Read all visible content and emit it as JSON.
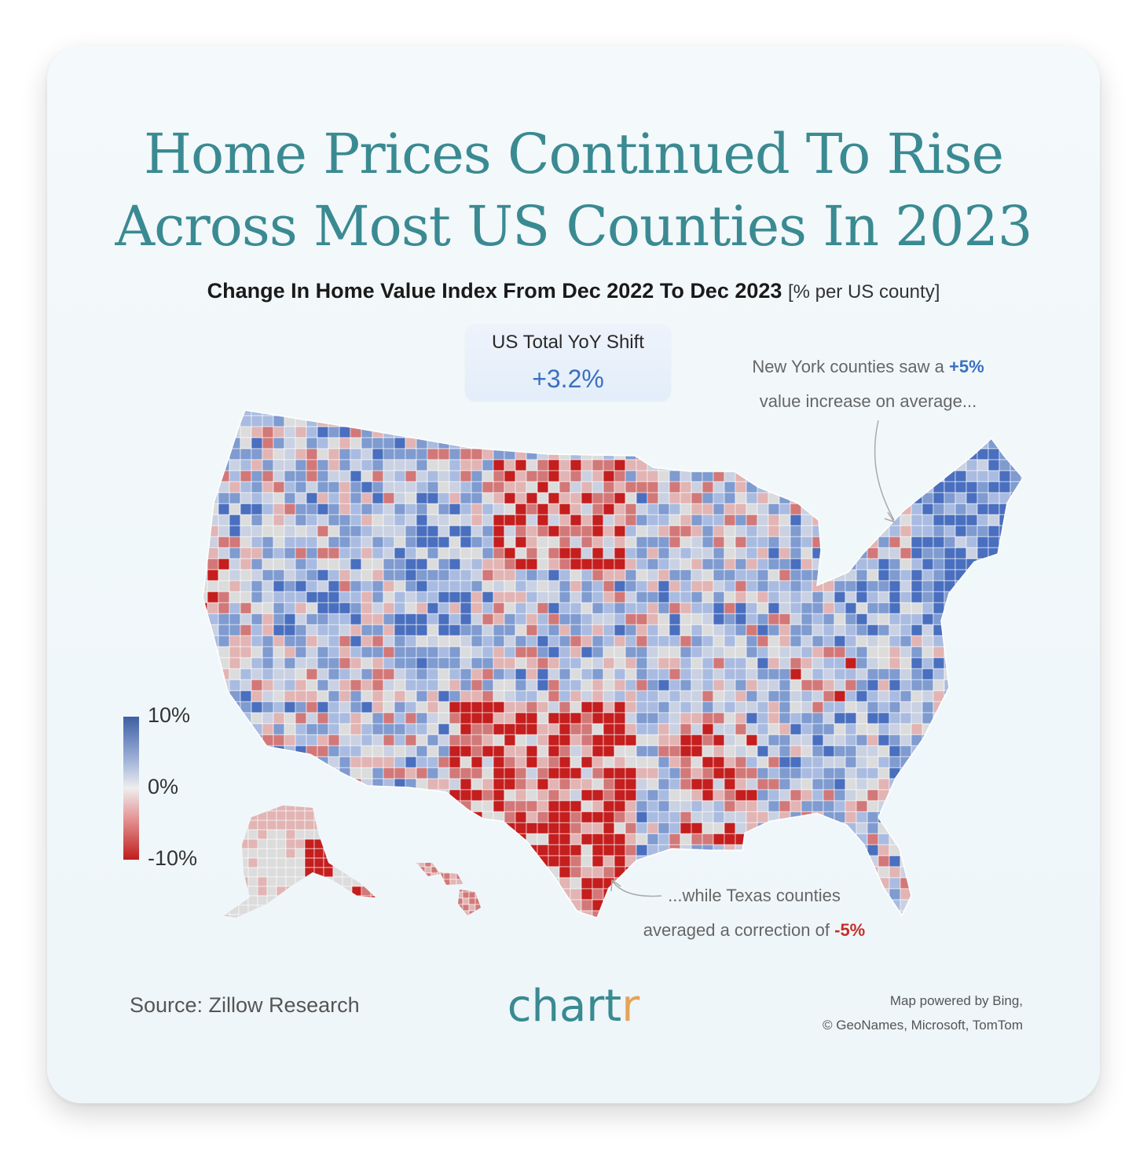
{
  "header": {
    "title_line1": "Home Prices Continued To Rise",
    "title_line2": "Across Most US Counties In 2023",
    "subtitle": "Change In Home Value Index From Dec 2022 To Dec 2023",
    "subtitle_unit": "[% per US county]"
  },
  "kpi": {
    "label": "US Total YoY Shift",
    "value": "+3.2%"
  },
  "annotations": {
    "ny": {
      "line1": "New York counties saw a",
      "value": "+5%",
      "line2": "value increase on average..."
    },
    "tx": {
      "line1": "...while Texas counties",
      "line2": "averaged a correction of",
      "value": "-5%"
    }
  },
  "legend": {
    "max": "10%",
    "mid": "0%",
    "min": "-10%"
  },
  "colors": {
    "high": "#3d5fa3",
    "neutral": "#e6e6e6",
    "low": "#bf1d1d",
    "accent": "#3a8a92"
  },
  "map": {
    "region": "Contiguous United States, Alaska and Hawaii by county",
    "metric_range": [
      -10,
      10
    ],
    "regional_highlights": [
      {
        "region": "New York",
        "average_change": 5
      },
      {
        "region": "Texas",
        "average_change": -5
      }
    ]
  },
  "footer": {
    "source": "Source: Zillow Research",
    "logo_main": "chart",
    "logo_accent": "r",
    "credit_line1": "Map powered by Bing,",
    "credit_line2": "© GeoNames, Microsoft, TomTom"
  }
}
